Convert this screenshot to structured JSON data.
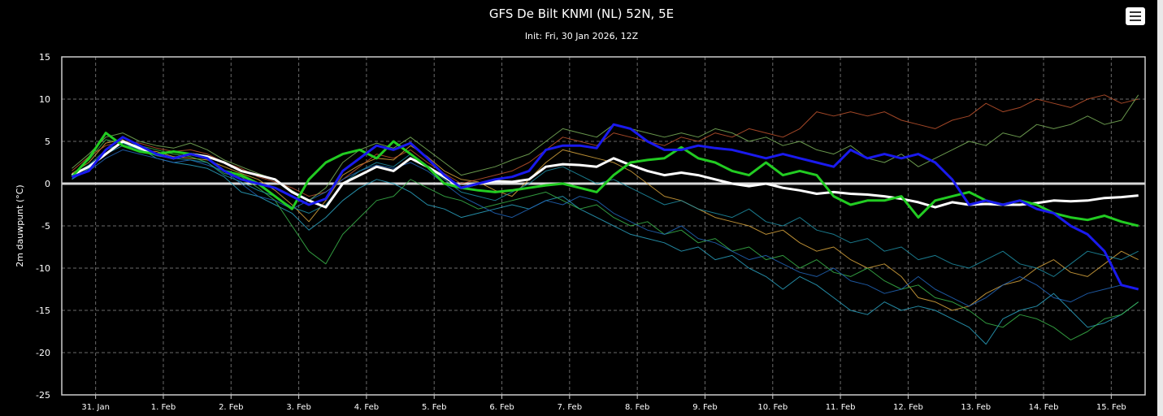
{
  "title": "GFS De Bilt KNMI (NL) 52N, 5E",
  "subtitle": "Init: Fri, 30 Jan 2026, 12Z",
  "menu_icon": "hamburger-menu-icon",
  "chart_data": {
    "type": "line",
    "ylabel": "2m dauwpunt (°C)",
    "ylim": [
      -25,
      15
    ],
    "yticks": [
      15,
      10,
      5,
      0,
      -5,
      -10,
      -15,
      -20,
      -25
    ],
    "xlim": [
      0,
      32
    ],
    "xticks": [
      {
        "x": 1,
        "label": "31. Jan"
      },
      {
        "x": 3,
        "label": "1. Feb"
      },
      {
        "x": 5,
        "label": "2. Feb"
      },
      {
        "x": 7,
        "label": "3. Feb"
      },
      {
        "x": 9,
        "label": "4. Feb"
      },
      {
        "x": 11,
        "label": "5. Feb"
      },
      {
        "x": 13,
        "label": "6. Feb"
      },
      {
        "x": 15,
        "label": "7. Feb"
      },
      {
        "x": 17,
        "label": "8. Feb"
      },
      {
        "x": 19,
        "label": "9. Feb"
      },
      {
        "x": 21,
        "label": "10. Feb"
      },
      {
        "x": 23,
        "label": "11. Feb"
      },
      {
        "x": 25,
        "label": "12. Feb"
      },
      {
        "x": 27,
        "label": "13. Feb"
      },
      {
        "x": 29,
        "label": "14. Feb"
      },
      {
        "x": 31,
        "label": "15. Feb"
      }
    ],
    "grid": true,
    "zero_line": true,
    "x": [
      0.3,
      0.8,
      1.3,
      1.8,
      2.3,
      2.8,
      3.3,
      3.8,
      4.3,
      4.8,
      5.3,
      5.8,
      6.3,
      6.8,
      7.3,
      7.8,
      8.3,
      8.8,
      9.3,
      9.8,
      10.3,
      10.8,
      11.3,
      11.8,
      12.3,
      12.8,
      13.3,
      13.8,
      14.3,
      14.8,
      15.3,
      15.8,
      16.3,
      16.8,
      17.3,
      17.8,
      18.3,
      18.8,
      19.3,
      19.8,
      20.3,
      20.8,
      21.3,
      21.8,
      22.3,
      22.8,
      23.3,
      23.8,
      24.3,
      24.8,
      25.3,
      25.8,
      26.3,
      26.8,
      27.3,
      27.8,
      28.3,
      28.8,
      29.3,
      29.8,
      30.3,
      30.8,
      31.3,
      31.8
    ],
    "series": [
      {
        "color": "#ffffff",
        "width": 3,
        "values": [
          1.0,
          2.0,
          3.5,
          5.0,
          4.2,
          3.5,
          3.0,
          3.5,
          3.2,
          2.5,
          1.5,
          1.0,
          0.5,
          -1.0,
          -2.0,
          -2.8,
          0.0,
          1.0,
          2.0,
          1.5,
          3.0,
          2.0,
          0.8,
          -0.5,
          0.0,
          0.3,
          0.2,
          0.5,
          2.0,
          2.3,
          2.2,
          2.0,
          3.0,
          2.2,
          1.5,
          1.0,
          1.3,
          1.0,
          0.5,
          0.0,
          -0.3,
          0.0,
          -0.5,
          -0.8,
          -1.2,
          -1.0,
          -1.2,
          -1.3,
          -1.5,
          -1.8,
          -2.2,
          -2.8,
          -2.2,
          -2.5,
          -2.4,
          -2.5,
          -2.5,
          -2.3,
          -2.0,
          -2.1,
          -2.0,
          -1.7,
          -1.6,
          -1.4
        ]
      },
      {
        "color": "#22cc22",
        "width": 3,
        "values": [
          0.8,
          3.0,
          6.0,
          4.5,
          3.8,
          3.5,
          3.8,
          3.5,
          3.0,
          1.5,
          1.0,
          0.0,
          -1.5,
          -3.0,
          0.5,
          2.5,
          3.5,
          4.0,
          3.0,
          5.0,
          3.5,
          2.0,
          0.0,
          -0.5,
          -0.8,
          -1.0,
          -0.8,
          -0.5,
          -0.2,
          0.0,
          -0.5,
          -1.0,
          1.0,
          2.5,
          2.8,
          3.0,
          4.3,
          3.0,
          2.5,
          1.5,
          1.0,
          2.5,
          1.0,
          1.5,
          1.0,
          -1.5,
          -2.5,
          -2.0,
          -2.0,
          -1.5,
          -4.0,
          -2.0,
          -1.5,
          -1.0,
          -2.0,
          -2.5,
          -2.0,
          -2.5,
          -3.5,
          -4.0,
          -4.3,
          -3.8,
          -4.5,
          -5.0
        ]
      },
      {
        "color": "#1a1aee",
        "width": 3,
        "values": [
          0.8,
          1.5,
          4.0,
          5.5,
          4.5,
          3.5,
          3.0,
          3.5,
          3.0,
          1.5,
          0.5,
          0.0,
          -0.5,
          -1.5,
          -2.5,
          -1.8,
          1.5,
          3.0,
          4.5,
          4.0,
          4.8,
          3.0,
          1.0,
          -0.5,
          0.0,
          0.5,
          0.8,
          1.5,
          4.0,
          4.5,
          4.5,
          4.2,
          7.0,
          6.5,
          5.0,
          4.0,
          4.0,
          4.5,
          4.2,
          4.0,
          3.5,
          3.0,
          3.5,
          3.0,
          2.5,
          2.0,
          4.0,
          3.0,
          3.5,
          3.0,
          3.5,
          2.5,
          0.5,
          -2.5,
          -2.0,
          -2.5,
          -2.0,
          -3.0,
          -3.5,
          -5.0,
          -6.0,
          -8.0,
          -12.0,
          -12.5
        ]
      },
      {
        "color": "#d9a63d",
        "width": 1,
        "values": [
          1.2,
          2.5,
          4.8,
          5.2,
          4.0,
          3.8,
          3.2,
          3.0,
          2.8,
          2.0,
          1.2,
          0.5,
          -0.8,
          -2.5,
          -4.5,
          -2.0,
          1.0,
          2.2,
          3.0,
          2.8,
          4.5,
          3.2,
          1.5,
          0.5,
          0.2,
          -0.8,
          -1.5,
          0.5,
          2.5,
          4.0,
          3.5,
          3.0,
          2.5,
          1.5,
          0.0,
          -1.5,
          -2.0,
          -3.0,
          -4.0,
          -4.5,
          -5.0,
          -6.0,
          -5.5,
          -7.0,
          -8.0,
          -7.5,
          -9.0,
          -10.0,
          -9.5,
          -11.0,
          -13.5,
          -14.0,
          -15.0,
          -14.5,
          -13.0,
          -12.0,
          -11.5,
          -10.0,
          -9.0,
          -10.5,
          -11.0,
          -9.5,
          -8.0,
          -9.0
        ]
      },
      {
        "color": "#2aa3c2",
        "width": 1,
        "values": [
          0.5,
          1.8,
          3.5,
          4.5,
          4.2,
          3.0,
          2.5,
          2.2,
          1.8,
          0.8,
          -1.0,
          -1.5,
          -2.5,
          -3.5,
          -5.5,
          -4.0,
          -2.0,
          -0.5,
          0.5,
          0.0,
          -1.0,
          -2.5,
          -3.0,
          -4.0,
          -3.5,
          -3.0,
          -2.5,
          -3.0,
          -2.0,
          -1.5,
          -3.0,
          -4.0,
          -5.0,
          -6.0,
          -6.5,
          -7.0,
          -8.0,
          -7.5,
          -9.0,
          -8.5,
          -10.0,
          -11.0,
          -12.5,
          -11.0,
          -12.0,
          -13.5,
          -15.0,
          -15.5,
          -14.0,
          -15.0,
          -14.5,
          -15.0,
          -16.0,
          -17.0,
          -19.0,
          -16.0,
          -15.0,
          -14.5,
          -13.0,
          -15.0,
          -17.0,
          -16.5,
          -15.5,
          -14.0
        ]
      },
      {
        "color": "#39b54a",
        "width": 1,
        "values": [
          1.0,
          2.8,
          5.2,
          4.8,
          4.5,
          4.0,
          3.5,
          3.2,
          2.5,
          1.2,
          0.8,
          -0.5,
          -2.0,
          -5.0,
          -8.0,
          -9.5,
          -6.0,
          -4.0,
          -2.0,
          -1.5,
          0.5,
          -0.5,
          -1.5,
          -2.0,
          -3.0,
          -2.5,
          -2.0,
          -1.5,
          -1.0,
          -2.0,
          -3.0,
          -2.5,
          -4.0,
          -5.0,
          -4.5,
          -6.0,
          -5.5,
          -7.0,
          -6.5,
          -8.0,
          -7.5,
          -9.0,
          -8.5,
          -10.0,
          -9.0,
          -10.5,
          -11.0,
          -10.0,
          -11.5,
          -12.5,
          -12.0,
          -13.5,
          -14.0,
          -15.0,
          -16.5,
          -17.0,
          -15.5,
          -16.0,
          -17.0,
          -18.5,
          -17.5,
          -16.0,
          -15.5,
          -14.0
        ]
      },
      {
        "color": "#c0532e",
        "width": 1,
        "values": [
          1.5,
          3.2,
          4.5,
          5.0,
          4.8,
          4.2,
          3.8,
          4.0,
          3.5,
          2.5,
          1.8,
          0.8,
          0.2,
          -0.5,
          -1.5,
          -1.0,
          0.5,
          2.0,
          3.5,
          3.0,
          4.0,
          2.5,
          1.2,
          0.0,
          0.5,
          1.0,
          1.5,
          2.5,
          4.0,
          5.5,
          5.0,
          4.5,
          6.0,
          5.5,
          5.0,
          4.5,
          5.5,
          5.0,
          6.0,
          5.5,
          6.5,
          6.0,
          5.5,
          6.5,
          8.5,
          8.0,
          8.5,
          8.0,
          8.5,
          7.5,
          7.0,
          6.5,
          7.5,
          8.0,
          9.5,
          8.5,
          9.0,
          10.0,
          9.5,
          9.0,
          10.0,
          10.5,
          9.5,
          10.0
        ]
      },
      {
        "color": "#2266bb",
        "width": 1,
        "values": [
          0.6,
          1.5,
          3.0,
          4.0,
          3.5,
          3.0,
          2.5,
          2.8,
          2.2,
          1.5,
          0.0,
          -1.5,
          -2.0,
          -3.0,
          -2.0,
          -1.0,
          0.5,
          1.5,
          2.2,
          1.8,
          2.5,
          1.5,
          0.0,
          -1.5,
          -2.5,
          -3.5,
          -4.0,
          -3.0,
          -2.0,
          -2.5,
          -1.5,
          -2.0,
          -3.5,
          -4.5,
          -5.5,
          -6.0,
          -5.0,
          -6.5,
          -7.0,
          -8.0,
          -9.0,
          -8.5,
          -9.5,
          -10.5,
          -11.0,
          -10.0,
          -11.5,
          -12.0,
          -13.0,
          -12.5,
          -11.0,
          -12.5,
          -13.5,
          -14.5,
          -13.5,
          -12.0,
          -11.0,
          -12.0,
          -13.5,
          -14.0,
          -13.0,
          -12.5,
          -12.0,
          -12.5
        ]
      },
      {
        "color": "#7bb35a",
        "width": 1,
        "values": [
          1.8,
          3.5,
          5.5,
          6.0,
          5.0,
          4.5,
          4.2,
          4.8,
          4.0,
          2.8,
          2.0,
          1.2,
          0.5,
          -0.8,
          -2.0,
          -0.5,
          2.5,
          4.0,
          4.8,
          4.2,
          5.5,
          4.0,
          2.5,
          1.0,
          1.5,
          2.0,
          2.8,
          3.5,
          5.0,
          6.5,
          6.0,
          5.5,
          7.0,
          6.5,
          6.0,
          5.5,
          6.0,
          5.5,
          6.5,
          6.0,
          5.0,
          5.5,
          4.5,
          5.0,
          4.0,
          3.5,
          4.5,
          3.0,
          2.5,
          3.5,
          2.0,
          3.0,
          4.0,
          5.0,
          4.5,
          6.0,
          5.5,
          7.0,
          6.5,
          7.0,
          8.0,
          7.0,
          7.5,
          10.5
        ]
      },
      {
        "color": "#1f8fa6",
        "width": 1,
        "values": [
          1.0,
          2.2,
          4.0,
          4.8,
          4.0,
          3.3,
          3.0,
          2.8,
          2.5,
          1.0,
          0.2,
          -0.8,
          -1.5,
          -2.8,
          -3.5,
          -2.5,
          0.0,
          1.5,
          2.5,
          2.0,
          3.5,
          2.0,
          0.5,
          -1.0,
          -1.5,
          -2.0,
          -1.0,
          0.0,
          1.5,
          2.0,
          1.0,
          0.0,
          0.5,
          -0.5,
          -1.5,
          -2.5,
          -2.0,
          -3.0,
          -3.5,
          -4.0,
          -3.0,
          -4.5,
          -5.0,
          -4.0,
          -5.5,
          -6.0,
          -7.0,
          -6.5,
          -8.0,
          -7.5,
          -9.0,
          -8.5,
          -9.5,
          -10.0,
          -9.0,
          -8.0,
          -9.5,
          -10.0,
          -11.0,
          -9.5,
          -8.0,
          -8.5,
          -9.0,
          -8.0
        ]
      }
    ]
  }
}
